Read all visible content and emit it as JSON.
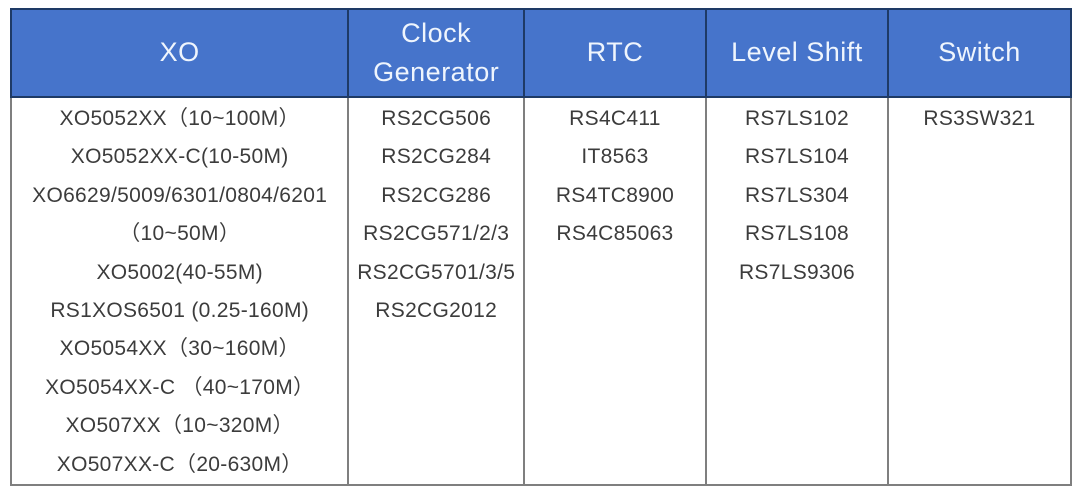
{
  "table": {
    "name": "product-family-table",
    "colors": {
      "header_bg": "#4674CB",
      "header_text": "#EFF5FD",
      "header_border": "#1E3A66",
      "grid_border": "#7F7F7F",
      "body_text": "#3C3C3C",
      "page_bg": "#FFFFFF"
    },
    "columns": [
      {
        "header": "XO",
        "items": [
          "XO5052XX（10~100M）",
          "XO5052XX-C(10-50M)",
          "XO6629/5009/6301/0804/6201",
          "（10~50M）",
          "XO5002(40-55M)",
          "RS1XOS6501 (0.25-160M)",
          "XO5054XX（30~160M）",
          "XO5054XX-C （40~170M）",
          "XO507XX（10~320M）",
          "XO507XX-C（20-630M）"
        ]
      },
      {
        "header": "Clock Generator",
        "items": [
          "RS2CG506",
          "RS2CG284",
          "RS2CG286",
          "RS2CG571/2/3",
          "RS2CG5701/3/5",
          "RS2CG2012"
        ]
      },
      {
        "header": "RTC",
        "items": [
          "RS4C411",
          "IT8563",
          "RS4TC8900",
          "RS4C85063"
        ]
      },
      {
        "header": "Level Shift",
        "items": [
          "RS7LS102",
          "RS7LS104",
          "RS7LS304",
          "RS7LS108",
          "RS7LS9306"
        ]
      },
      {
        "header": "Switch",
        "items": [
          "RS3SW321"
        ]
      }
    ]
  }
}
